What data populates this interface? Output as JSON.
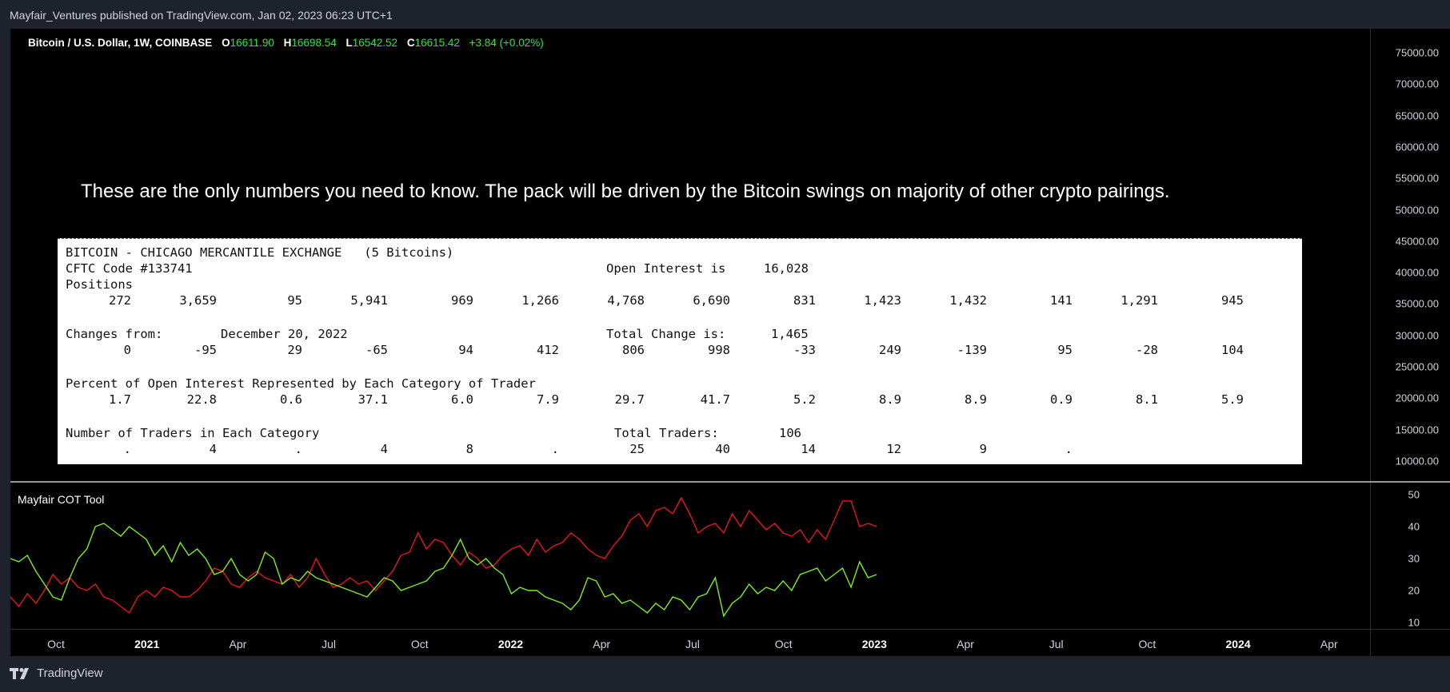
{
  "header": {
    "published": "Mayfair_Ventures published on TradingView.com, Jan 02, 2023 06:23 UTC+1"
  },
  "legend": {
    "symbol": "Bitcoin / U.S. Dollar, 1W, COINBASE",
    "open_key": "O",
    "open": "16611.90",
    "high_key": "H",
    "high": "16698.54",
    "low_key": "L",
    "low": "16542.52",
    "close_key": "C",
    "close": "16615.42",
    "change": "+3.84 (+0.02%)"
  },
  "headline": "These are the only numbers you need to know. The pack will be driven by the Bitcoin swings on majority of other crypto pairings.",
  "cot": {
    "title": "BITCOIN - CHICAGO MERCANTILE EXCHANGE   (5 Bitcoins)",
    "cftc_code": "CFTC Code #133741",
    "open_interest_label": "Open Interest is",
    "open_interest": "16,028",
    "positions_label": "Positions",
    "positions": [
      "272",
      "3,659",
      "95",
      "5,941",
      "969",
      "1,266",
      "4,768",
      "6,690",
      "831",
      "1,423",
      "1,432",
      "141",
      "1,291",
      "945"
    ],
    "changes_label": "Changes from:",
    "changes_date": "December 20, 2022",
    "total_change_label": "Total Change is:",
    "total_change": "1,465",
    "changes": [
      "0",
      "-95",
      "29",
      "-65",
      "94",
      "412",
      "806",
      "998",
      "-33",
      "249",
      "-139",
      "95",
      "-28",
      "104"
    ],
    "percent_label": "Percent of Open Interest Represented by Each Category of Trader",
    "percents": [
      "1.7",
      "22.8",
      "0.6",
      "37.1",
      "6.0",
      "7.9",
      "29.7",
      "41.7",
      "5.2",
      "8.9",
      "8.9",
      "0.9",
      "8.1",
      "5.9"
    ],
    "traders_label": "Number of Traders in Each Category",
    "total_traders_label": "Total Traders:",
    "total_traders": "106",
    "traders": [
      ".",
      "4",
      ".",
      "4",
      "8",
      ".",
      "25",
      "40",
      "14",
      "12",
      "9",
      "."
    ]
  },
  "price_axis": [
    "75000.00",
    "70000.00",
    "65000.00",
    "60000.00",
    "55000.00",
    "50000.00",
    "45000.00",
    "40000.00",
    "35000.00",
    "30000.00",
    "25000.00",
    "20000.00",
    "15000.00",
    "10000.00"
  ],
  "indicator": {
    "title": "Mayfair COT Tool",
    "axis": [
      "50",
      "40",
      "30",
      "20",
      "10"
    ]
  },
  "time_axis": [
    {
      "label": "Oct",
      "year": false
    },
    {
      "label": "2021",
      "year": true
    },
    {
      "label": "Apr",
      "year": false
    },
    {
      "label": "Jul",
      "year": false
    },
    {
      "label": "Oct",
      "year": false
    },
    {
      "label": "2022",
      "year": true
    },
    {
      "label": "Apr",
      "year": false
    },
    {
      "label": "Jul",
      "year": false
    },
    {
      "label": "Oct",
      "year": false
    },
    {
      "label": "2023",
      "year": true
    },
    {
      "label": "Apr",
      "year": false
    },
    {
      "label": "Jul",
      "year": false
    },
    {
      "label": "Oct",
      "year": false
    },
    {
      "label": "2024",
      "year": true
    },
    {
      "label": "Apr",
      "year": false
    }
  ],
  "colors": {
    "long_series": "#e8141a",
    "short_series": "#7cf018",
    "price_up": "#22e840"
  },
  "chart_data": {
    "type": "line",
    "ylim": [
      10,
      50
    ],
    "series": [
      {
        "values": [
          18,
          15,
          19,
          16,
          20,
          25,
          22,
          24,
          21,
          20,
          22,
          18,
          17,
          15,
          13,
          18,
          20,
          18,
          21,
          20,
          18,
          18,
          20,
          23,
          27,
          26,
          22,
          21,
          24,
          26,
          24,
          23,
          22,
          25,
          21,
          24,
          30,
          25,
          21,
          22,
          24,
          22,
          23,
          20,
          23,
          26,
          31,
          32,
          38,
          33,
          36,
          35,
          31,
          28,
          32,
          30,
          27,
          28,
          31,
          33,
          34,
          31,
          36,
          32,
          34,
          35,
          38,
          36,
          33,
          31,
          30,
          34,
          37,
          42,
          44,
          40,
          45,
          46,
          44,
          49,
          44,
          38,
          40,
          41,
          38,
          44,
          40,
          45,
          42,
          39,
          41,
          38,
          37,
          39,
          35,
          39,
          36,
          42,
          48,
          48,
          40,
          41,
          40
        ]
      },
      {
        "values": [
          30,
          29,
          31,
          26,
          22,
          18,
          17,
          24,
          30,
          33,
          40,
          41,
          39,
          37,
          40,
          38,
          36,
          31,
          34,
          29,
          35,
          31,
          33,
          30,
          25,
          26,
          30,
          25,
          23,
          25,
          32,
          30,
          22,
          24,
          23,
          26,
          24,
          23,
          22,
          21,
          20,
          19,
          18,
          21,
          24,
          23,
          20,
          21,
          22,
          23,
          26,
          27,
          31,
          36,
          30,
          28,
          30,
          27,
          25,
          19,
          21,
          20,
          20,
          18,
          17,
          16,
          14,
          17,
          24,
          23,
          18,
          19,
          16,
          17,
          15,
          13,
          16,
          14,
          18,
          17,
          14,
          18,
          19,
          24,
          12,
          16,
          18,
          22,
          19,
          21,
          20,
          23,
          20,
          25,
          26,
          27,
          23,
          25,
          27,
          21,
          29,
          24,
          25
        ]
      }
    ]
  }
}
